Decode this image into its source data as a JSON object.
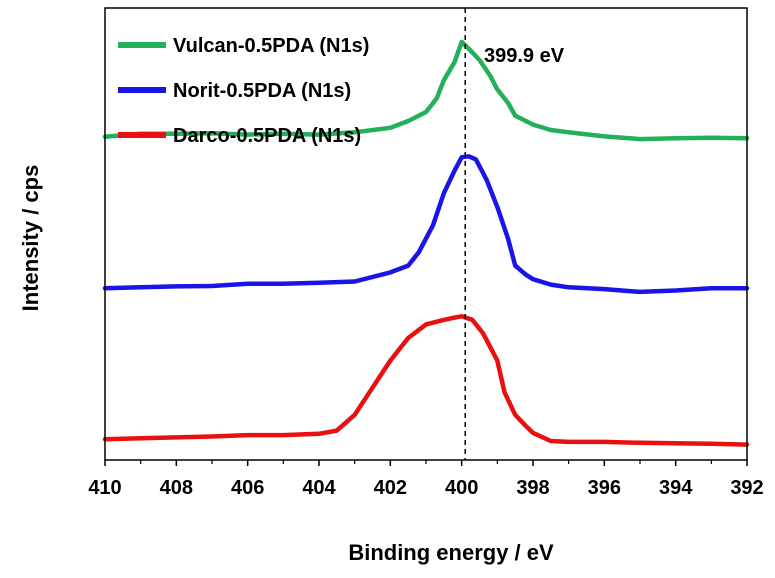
{
  "chart_data": {
    "type": "line",
    "xlabel": "Binding energy / eV",
    "ylabel": "Intensity / cps",
    "xlim": [
      410,
      392
    ],
    "x_reversed": true,
    "y_ticks_shown": false,
    "grid": false,
    "legend_position": "top-left",
    "x_ticks": [
      "410",
      "408",
      "406",
      "404",
      "402",
      "400",
      "398",
      "396",
      "394",
      "392"
    ],
    "annotation": {
      "label": "399.9 eV",
      "x": 399.9,
      "line_style": "dashed"
    },
    "series": [
      {
        "name": "Vulcan-0.5PDA (N1s)",
        "color": "#22b05a",
        "x": [
          410,
          409,
          408,
          407,
          406,
          405,
          404,
          403,
          402,
          401.5,
          401,
          400.7,
          400.5,
          400.2,
          400.0,
          399.8,
          399.5,
          399.2,
          399.0,
          398.7,
          398.5,
          398.0,
          397.5,
          397,
          396,
          395,
          394,
          393,
          392
        ],
        "y": [
          0.715,
          0.722,
          0.722,
          0.723,
          0.72,
          0.722,
          0.72,
          0.725,
          0.735,
          0.75,
          0.77,
          0.8,
          0.84,
          0.88,
          0.925,
          0.91,
          0.885,
          0.85,
          0.82,
          0.79,
          0.762,
          0.742,
          0.73,
          0.725,
          0.716,
          0.71,
          0.712,
          0.713,
          0.712
        ]
      },
      {
        "name": "Norit-0.5PDA (N1s)",
        "color": "#1a14e8",
        "x": [
          410,
          409,
          408,
          407,
          406,
          405,
          404,
          403,
          402,
          401.5,
          401.2,
          400.8,
          400.5,
          400.2,
          400.0,
          399.8,
          399.6,
          399.3,
          399.0,
          398.7,
          398.5,
          398.2,
          398.0,
          397.5,
          397,
          396,
          395,
          394,
          393,
          392
        ],
        "y": [
          0.38,
          0.382,
          0.384,
          0.385,
          0.39,
          0.39,
          0.392,
          0.395,
          0.415,
          0.43,
          0.46,
          0.52,
          0.59,
          0.64,
          0.67,
          0.672,
          0.665,
          0.62,
          0.56,
          0.49,
          0.43,
          0.41,
          0.4,
          0.388,
          0.382,
          0.378,
          0.372,
          0.375,
          0.38,
          0.38
        ]
      },
      {
        "name": "Darco-0.5PDA (N1s)",
        "color": "#e81010",
        "x": [
          410,
          409,
          408,
          407,
          406,
          405,
          404,
          403.5,
          403,
          402.5,
          402,
          401.5,
          401,
          400.5,
          400.2,
          400.0,
          399.7,
          399.4,
          399.0,
          398.8,
          398.5,
          398.2,
          398.0,
          397.5,
          397,
          396,
          395,
          394,
          393,
          392
        ],
        "y": [
          0.046,
          0.048,
          0.05,
          0.052,
          0.055,
          0.055,
          0.058,
          0.065,
          0.1,
          0.16,
          0.22,
          0.27,
          0.3,
          0.31,
          0.315,
          0.318,
          0.31,
          0.28,
          0.22,
          0.15,
          0.1,
          0.075,
          0.06,
          0.042,
          0.04,
          0.04,
          0.038,
          0.037,
          0.036,
          0.034
        ]
      }
    ]
  }
}
